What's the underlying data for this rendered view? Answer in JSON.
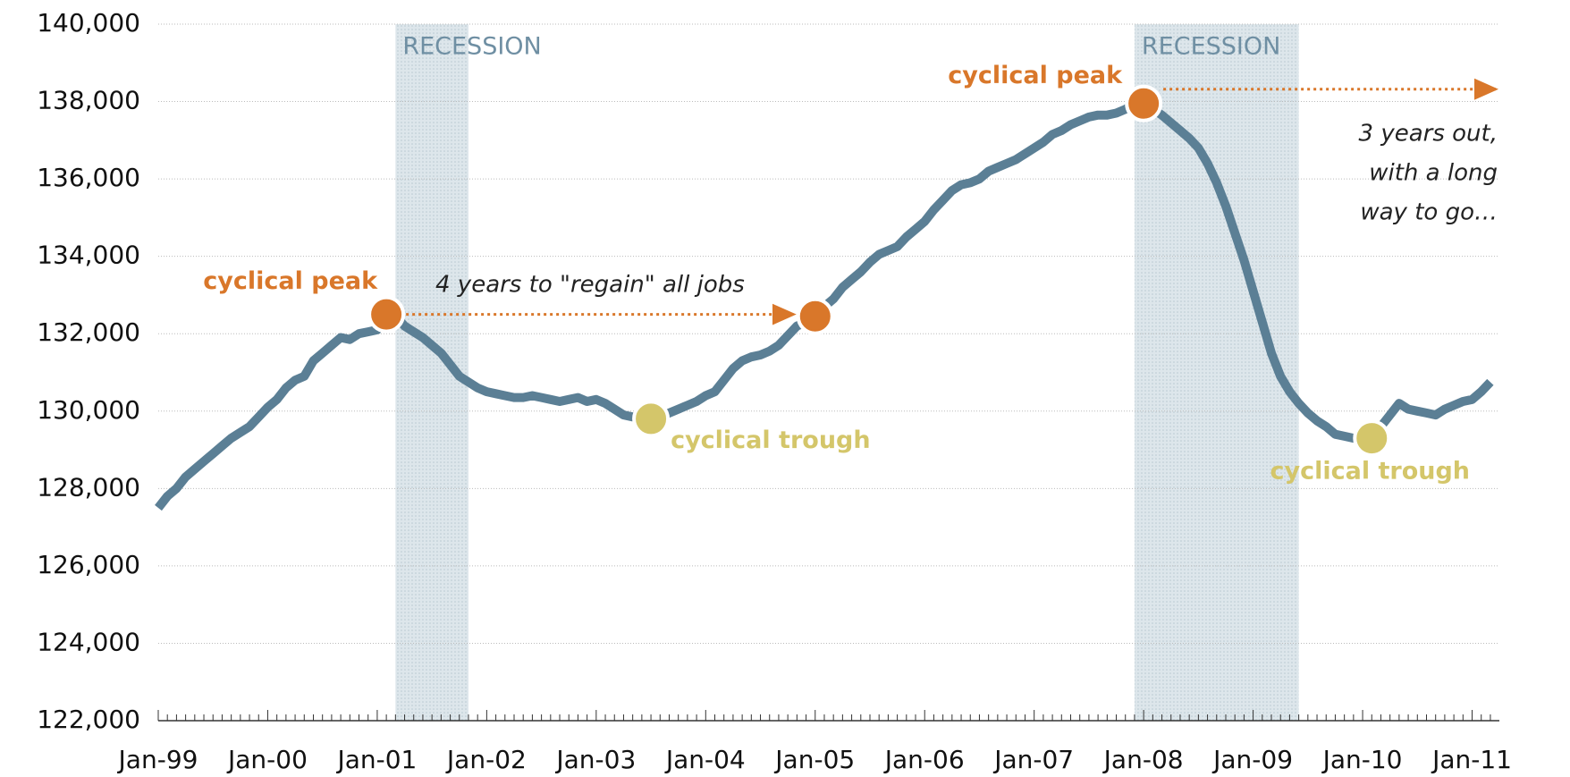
{
  "chart_data": {
    "type": "line",
    "categories": [
      "Jan-99",
      null,
      null,
      null,
      null,
      null,
      null,
      null,
      null,
      null,
      null,
      null,
      "Jan-00",
      null,
      null,
      null,
      null,
      null,
      null,
      null,
      null,
      null,
      null,
      null,
      "Jan-01",
      null,
      null,
      null,
      null,
      null,
      null,
      null,
      null,
      null,
      null,
      null,
      "Jan-02",
      null,
      null,
      null,
      null,
      null,
      null,
      null,
      null,
      null,
      null,
      null,
      "Jan-03",
      null,
      null,
      null,
      null,
      null,
      null,
      null,
      null,
      null,
      null,
      null,
      "Jan-04",
      null,
      null,
      null,
      null,
      null,
      null,
      null,
      null,
      null,
      null,
      null,
      "Jan-05",
      null,
      null,
      null,
      null,
      null,
      null,
      null,
      null,
      null,
      null,
      null,
      "Jan-06",
      null,
      null,
      null,
      null,
      null,
      null,
      null,
      null,
      null,
      null,
      null,
      "Jan-07",
      null,
      null,
      null,
      null,
      null,
      null,
      null,
      null,
      null,
      null,
      null,
      "Jan-08",
      null,
      null,
      null,
      null,
      null,
      null,
      null,
      null,
      null,
      null,
      null,
      "Jan-09",
      null,
      null,
      null,
      null,
      null,
      null,
      null,
      null,
      null,
      null,
      null,
      "Jan-10",
      null,
      null,
      null,
      null,
      null,
      null,
      null,
      null,
      null,
      null,
      null,
      "Jan-11",
      null,
      null
    ],
    "series": [
      {
        "color": "#5b7f95",
        "values": [
          127500,
          127800,
          128000,
          128300,
          128500,
          128700,
          128900,
          129100,
          129300,
          129450,
          129600,
          129850,
          130100,
          130300,
          130600,
          130800,
          130900,
          131300,
          131500,
          131700,
          131900,
          131850,
          132000,
          132050,
          132100,
          132500,
          132450,
          132200,
          132050,
          131900,
          131700,
          131500,
          131200,
          130900,
          130750,
          130600,
          130500,
          130450,
          130400,
          130350,
          130350,
          130400,
          130350,
          130300,
          130250,
          130300,
          130350,
          130250,
          130300,
          130200,
          130050,
          129900,
          129850,
          129850,
          129800,
          129850,
          129950,
          130050,
          130150,
          130250,
          130400,
          130500,
          130800,
          131100,
          131300,
          131400,
          131450,
          131550,
          131700,
          131950,
          132200,
          132300,
          132450,
          132700,
          132900,
          133200,
          133400,
          133600,
          133850,
          134050,
          134150,
          134250,
          134500,
          134700,
          134900,
          135200,
          135450,
          135700,
          135850,
          135900,
          136000,
          136200,
          136300,
          136400,
          136500,
          136650,
          136800,
          136950,
          137150,
          137250,
          137400,
          137500,
          137600,
          137650,
          137650,
          137700,
          137800,
          137950,
          137950,
          137800,
          137650,
          137450,
          137250,
          137050,
          136800,
          136400,
          135900,
          135300,
          134600,
          133900,
          133100,
          132300,
          131500,
          130900,
          130500,
          130200,
          129950,
          129750,
          129600,
          129400,
          129350,
          129300,
          129300,
          129300,
          129600,
          129900,
          130200,
          130050,
          130000,
          129950,
          129900,
          130050,
          130150,
          130250,
          130300,
          130500,
          130750
        ]
      }
    ],
    "ylim": [
      122000,
      140000
    ],
    "yticks": [
      {
        "value": 122000,
        "label": "122,000"
      },
      {
        "value": 124000,
        "label": "124,000"
      },
      {
        "value": 126000,
        "label": "126,000"
      },
      {
        "value": 128000,
        "label": "128,000"
      },
      {
        "value": 130000,
        "label": "130,000"
      },
      {
        "value": 132000,
        "label": "132,000"
      },
      {
        "value": 134000,
        "label": "134,000"
      },
      {
        "value": 136000,
        "label": "136,000"
      },
      {
        "value": 138000,
        "label": "138,000"
      },
      {
        "value": 140000,
        "label": "140,000"
      }
    ],
    "grid": true,
    "recessions": [
      {
        "label": "RECESSION",
        "start": 26,
        "end": 34
      },
      {
        "label": "RECESSION",
        "start": 107,
        "end": 125
      }
    ],
    "annotations": [
      {
        "text": "cyclical peak",
        "index": 25,
        "color": "#d9772a"
      },
      {
        "text": "cyclical trough",
        "index": 54,
        "color": "#d4c66a"
      },
      {
        "index": 72,
        "color": "#d9772a"
      },
      {
        "text": "cyclical peak",
        "index": 108,
        "color": "#d9772a"
      },
      {
        "text": "cyclical trough",
        "index": 133,
        "color": "#d4c66a"
      }
    ],
    "notes": [
      "4 years to \"regain\" all jobs",
      "3 years out,",
      "with a long",
      "way to go…"
    ]
  }
}
